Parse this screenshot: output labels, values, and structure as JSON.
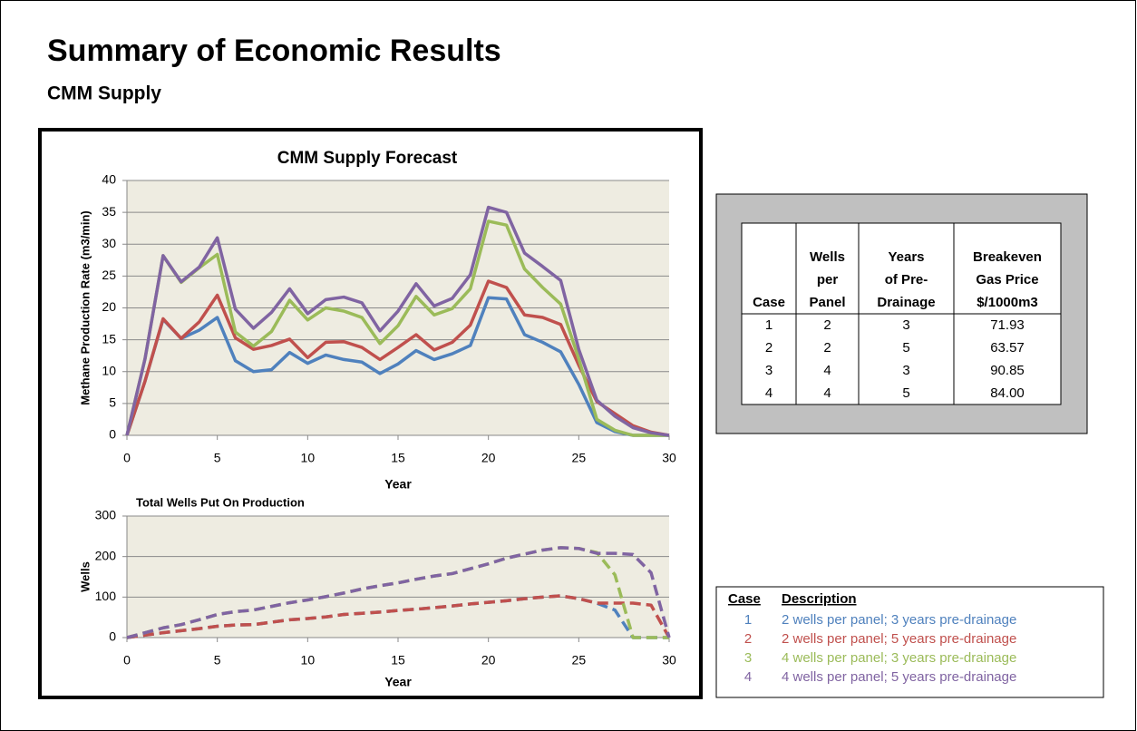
{
  "header": {
    "title": "Summary of Economic Results",
    "subtitle": "CMM Supply"
  },
  "chart_data": [
    {
      "type": "line",
      "title": "CMM Supply Forecast",
      "x_label": "Year",
      "y_label": "Methane Production Rate (m3/min)",
      "x": [
        0,
        1,
        2,
        3,
        4,
        5,
        6,
        7,
        8,
        9,
        10,
        11,
        12,
        13,
        14,
        15,
        16,
        17,
        18,
        19,
        20,
        21,
        22,
        23,
        24,
        25,
        26,
        27,
        28,
        29,
        30
      ],
      "xlim": [
        0,
        30
      ],
      "xticks": [
        0,
        5,
        10,
        15,
        20,
        25,
        30
      ],
      "ylim": [
        0,
        40
      ],
      "yticks": [
        0,
        5,
        10,
        15,
        20,
        25,
        30,
        35,
        40
      ],
      "grid": true,
      "line_style": "solid",
      "series": [
        {
          "color": "#4F81BD",
          "values": [
            0,
            8.5,
            18.2,
            15.2,
            16.5,
            18.5,
            11.7,
            10,
            10.3,
            13,
            11.3,
            12.6,
            11.9,
            11.5,
            9.7,
            11.2,
            13.3,
            11.9,
            12.8,
            14.1,
            21.6,
            21.4,
            15.8,
            14.6,
            13.1,
            8,
            2,
            0.6,
            0,
            0,
            0
          ]
        },
        {
          "color": "#C0504D",
          "values": [
            0,
            8.5,
            18.3,
            15.2,
            17.8,
            22,
            15.3,
            13.5,
            14.1,
            15.1,
            12.2,
            14.6,
            14.7,
            13.8,
            11.9,
            13.8,
            15.8,
            13.4,
            14.6,
            17.3,
            24.2,
            23.2,
            18.9,
            18.5,
            17.4,
            11,
            5.3,
            3.4,
            1.5,
            0.5,
            0
          ]
        },
        {
          "color": "#9BBB59",
          "values": [
            0,
            12,
            28.2,
            24,
            26.3,
            28.4,
            16.2,
            14,
            16.3,
            21.2,
            18.1,
            20,
            19.5,
            18.5,
            14.4,
            17.2,
            21.8,
            18.9,
            19.9,
            23,
            33.6,
            33,
            26.1,
            23.2,
            20.6,
            12,
            2.5,
            0.8,
            0,
            0,
            0
          ]
        },
        {
          "color": "#8064A2",
          "values": [
            0,
            12,
            28.2,
            24.1,
            26.4,
            31,
            19.8,
            16.8,
            19.3,
            23,
            19.1,
            21.3,
            21.7,
            20.8,
            16.4,
            19.5,
            23.8,
            20.3,
            21.5,
            25.2,
            35.8,
            35,
            28.6,
            26.5,
            24.3,
            13.5,
            5.5,
            3,
            1.2,
            0.4,
            0
          ]
        }
      ]
    },
    {
      "type": "line",
      "title": "Total Wells Put On Production",
      "x_label": "Year",
      "y_label": "Wells",
      "x": [
        0,
        1,
        2,
        3,
        4,
        5,
        6,
        7,
        8,
        9,
        10,
        11,
        12,
        13,
        14,
        15,
        16,
        17,
        18,
        19,
        20,
        21,
        22,
        23,
        24,
        25,
        26,
        27,
        28,
        29,
        30
      ],
      "xlim": [
        0,
        30
      ],
      "xticks": [
        0,
        5,
        10,
        15,
        20,
        25,
        30
      ],
      "ylim": [
        0,
        300
      ],
      "yticks": [
        0,
        100,
        200,
        300
      ],
      "grid": true,
      "line_style": "dashed",
      "series": [
        {
          "color": "#4F81BD",
          "values": [
            0,
            6,
            12,
            17,
            22,
            28,
            31,
            32,
            38,
            44,
            47,
            51,
            57,
            60,
            63,
            67,
            70,
            74,
            78,
            83,
            87,
            91,
            96,
            100,
            103,
            96,
            85,
            68,
            0,
            0,
            0
          ]
        },
        {
          "color": "#C0504D",
          "values": [
            0,
            6,
            12,
            17,
            22,
            28,
            31,
            32,
            38,
            44,
            47,
            51,
            57,
            60,
            63,
            67,
            70,
            74,
            78,
            83,
            87,
            91,
            96,
            100,
            103,
            96,
            85,
            85,
            85,
            80,
            0
          ]
        },
        {
          "color": "#9BBB59",
          "values": [
            0,
            12,
            24,
            32,
            44,
            57,
            64,
            68,
            77,
            86,
            93,
            101,
            110,
            120,
            128,
            135,
            144,
            152,
            158,
            170,
            182,
            196,
            206,
            216,
            222,
            220,
            210,
            155,
            0,
            0,
            0
          ]
        },
        {
          "color": "#8064A2",
          "values": [
            0,
            12,
            24,
            32,
            44,
            57,
            64,
            68,
            77,
            86,
            93,
            101,
            110,
            120,
            128,
            135,
            144,
            152,
            158,
            170,
            182,
            196,
            206,
            216,
            222,
            220,
            208,
            208,
            205,
            160,
            0
          ]
        }
      ]
    }
  ],
  "table": {
    "columns": [
      [
        "Case"
      ],
      [
        "Wells",
        "per",
        "Panel"
      ],
      [
        "Years",
        "of Pre-",
        "Drainage"
      ],
      [
        "Breakeven",
        "Gas Price",
        "$/1000m3"
      ]
    ],
    "rows": [
      [
        "1",
        "2",
        "3",
        "71.93"
      ],
      [
        "2",
        "2",
        "5",
        "63.57"
      ],
      [
        "3",
        "4",
        "3",
        "90.85"
      ],
      [
        "4",
        "4",
        "5",
        "84.00"
      ]
    ]
  },
  "legend": {
    "columns": [
      "Case",
      "Description"
    ],
    "rows": [
      [
        "1",
        "2 wells per panel; 3 years pre-drainage"
      ],
      [
        "2",
        "2 wells per panel; 5 years pre-drainage"
      ],
      [
        "3",
        "4 wells per panel; 3 years pre-drainage"
      ],
      [
        "4",
        "4 wells per panel; 5 years pre-drainage"
      ]
    ]
  }
}
